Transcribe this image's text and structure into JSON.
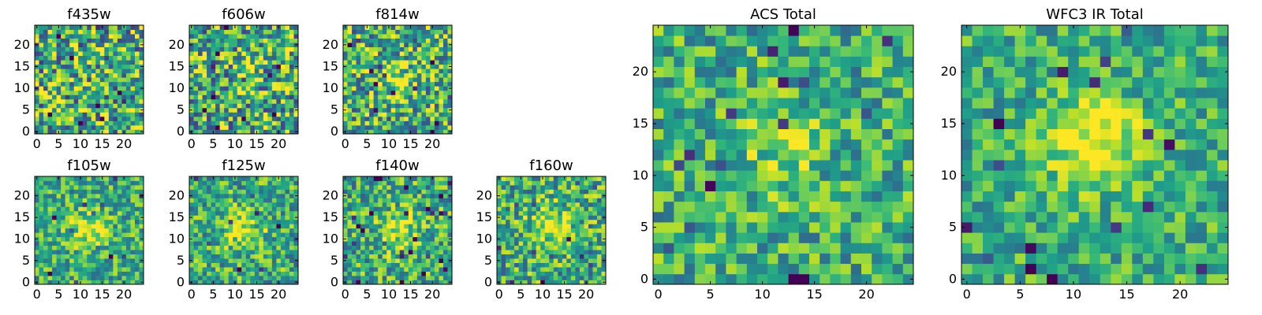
{
  "chart_data": [
    {
      "id": "f435w",
      "type": "heatmap",
      "title": "f435w",
      "grid_size": 25,
      "xlim": [
        0,
        24
      ],
      "ylim": [
        0,
        24
      ],
      "xticks": [
        0,
        5,
        10,
        15,
        20
      ],
      "yticks": [
        0,
        5,
        10,
        15,
        20
      ],
      "colormap": "viridis",
      "value_range": [
        0,
        1
      ],
      "peak": {
        "x": 12,
        "y": 12,
        "amplitude": 0.0
      },
      "noise": 0.55,
      "seed": 11
    },
    {
      "id": "f606w",
      "type": "heatmap",
      "title": "f606w",
      "grid_size": 25,
      "xlim": [
        0,
        24
      ],
      "ylim": [
        0,
        24
      ],
      "xticks": [
        0,
        5,
        10,
        15,
        20
      ],
      "yticks": [
        0,
        5,
        10,
        15,
        20
      ],
      "colormap": "viridis",
      "value_range": [
        0,
        1
      ],
      "peak": {
        "x": 12,
        "y": 12,
        "amplitude": 0.1
      },
      "noise": 0.55,
      "seed": 23
    },
    {
      "id": "f814w",
      "type": "heatmap",
      "title": "f814w",
      "grid_size": 25,
      "xlim": [
        0,
        24
      ],
      "ylim": [
        0,
        24
      ],
      "xticks": [
        0,
        5,
        10,
        15,
        20
      ],
      "yticks": [
        0,
        5,
        10,
        15,
        20
      ],
      "colormap": "viridis",
      "value_range": [
        0,
        1
      ],
      "peak": {
        "x": 12,
        "y": 12,
        "amplitude": 0.3
      },
      "noise": 0.5,
      "seed": 37
    },
    {
      "id": "f105w",
      "type": "heatmap",
      "title": "f105w",
      "grid_size": 25,
      "xlim": [
        0,
        24
      ],
      "ylim": [
        0,
        24
      ],
      "xticks": [
        0,
        5,
        10,
        15,
        20
      ],
      "yticks": [
        0,
        5,
        10,
        15,
        20
      ],
      "colormap": "viridis",
      "value_range": [
        0,
        1
      ],
      "peak": {
        "x": 12,
        "y": 12,
        "amplitude": 0.35
      },
      "noise": 0.35,
      "seed": 41
    },
    {
      "id": "f125w",
      "type": "heatmap",
      "title": "f125w",
      "grid_size": 25,
      "xlim": [
        0,
        24
      ],
      "ylim": [
        0,
        24
      ],
      "xticks": [
        0,
        5,
        10,
        15,
        20
      ],
      "yticks": [
        0,
        5,
        10,
        15,
        20
      ],
      "colormap": "viridis",
      "value_range": [
        0,
        1
      ],
      "peak": {
        "x": 12,
        "y": 12,
        "amplitude": 0.35
      },
      "noise": 0.38,
      "seed": 53
    },
    {
      "id": "f140w",
      "type": "heatmap",
      "title": "f140w",
      "grid_size": 25,
      "xlim": [
        0,
        24
      ],
      "ylim": [
        0,
        24
      ],
      "xticks": [
        0,
        5,
        10,
        15,
        20
      ],
      "yticks": [
        0,
        5,
        10,
        15,
        20
      ],
      "colormap": "viridis",
      "value_range": [
        0,
        1
      ],
      "peak": {
        "x": 12,
        "y": 12,
        "amplitude": 0.35
      },
      "noise": 0.4,
      "seed": 67
    },
    {
      "id": "f160w",
      "type": "heatmap",
      "title": "f160w",
      "grid_size": 25,
      "xlim": [
        0,
        24
      ],
      "ylim": [
        0,
        24
      ],
      "xticks": [
        0,
        5,
        10,
        15,
        20
      ],
      "yticks": [
        0,
        5,
        10,
        15,
        20
      ],
      "colormap": "viridis",
      "value_range": [
        0,
        1
      ],
      "peak": {
        "x": 12,
        "y": 13,
        "amplitude": 0.4
      },
      "noise": 0.42,
      "seed": 79
    },
    {
      "id": "acs-total",
      "type": "heatmap",
      "title": "ACS Total",
      "grid_size": 25,
      "xlim": [
        0,
        24
      ],
      "ylim": [
        0,
        24
      ],
      "xticks": [
        0,
        5,
        10,
        15,
        20
      ],
      "yticks": [
        0,
        5,
        10,
        15,
        20
      ],
      "colormap": "viridis",
      "value_range": [
        0,
        1
      ],
      "peak": {
        "x": 12,
        "y": 12,
        "amplitude": 0.2
      },
      "noise": 0.35,
      "seed": 97
    },
    {
      "id": "wfc3-ir-total",
      "type": "heatmap",
      "title": "WFC3 IR Total",
      "grid_size": 25,
      "xlim": [
        0,
        24
      ],
      "ylim": [
        0,
        24
      ],
      "xticks": [
        0,
        5,
        10,
        15,
        20
      ],
      "yticks": [
        0,
        5,
        10,
        15,
        20
      ],
      "colormap": "viridis",
      "value_range": [
        0,
        1
      ],
      "peak": {
        "x": 12,
        "y": 13,
        "amplitude": 0.45
      },
      "noise": 0.3,
      "seed": 113
    }
  ],
  "colors": {
    "viridis": [
      "#440154",
      "#482878",
      "#3e4a89",
      "#31688e",
      "#26828e",
      "#1f9e89",
      "#35b779",
      "#6ece58",
      "#b5de2b",
      "#fde725"
    ]
  }
}
